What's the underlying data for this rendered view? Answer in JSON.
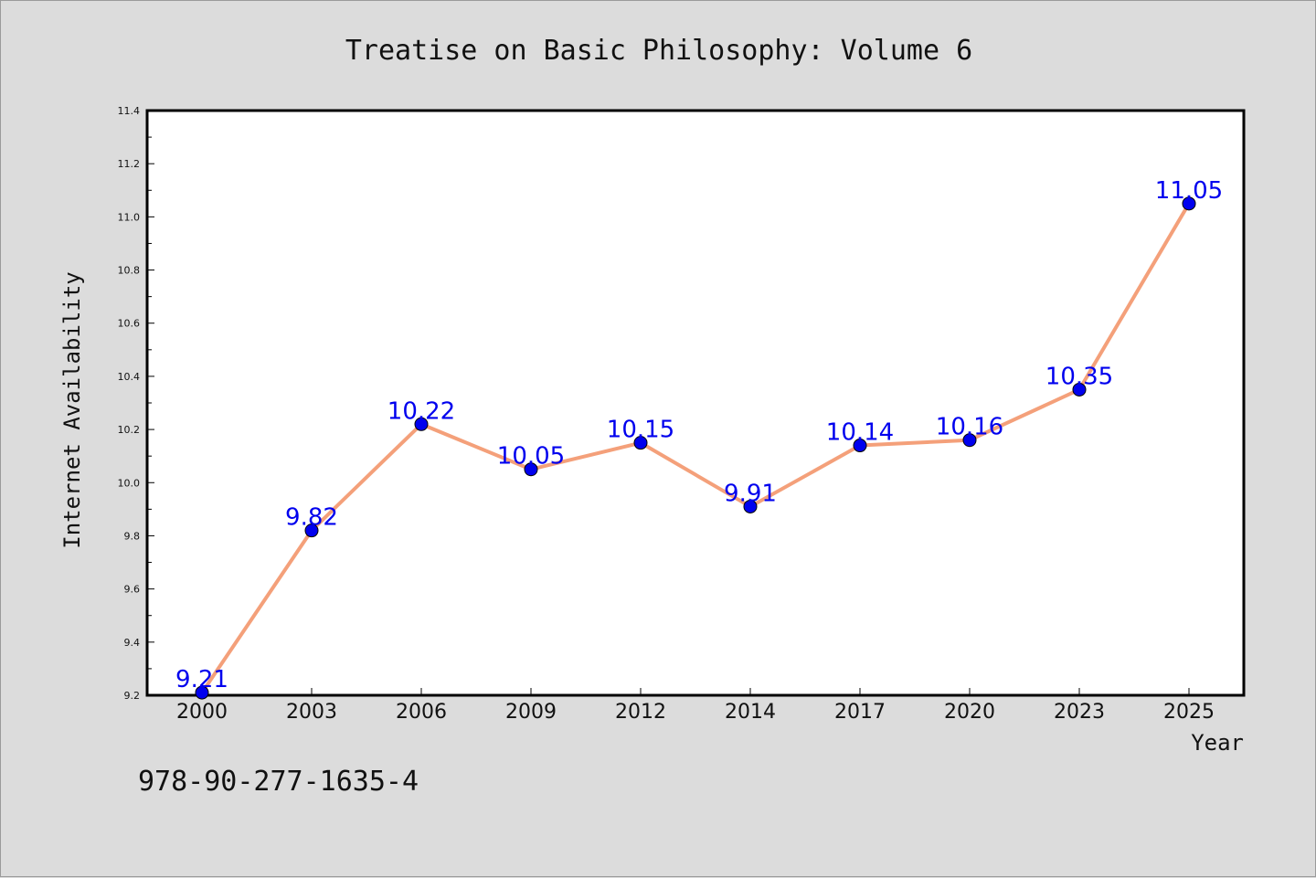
{
  "chart_data": {
    "type": "line",
    "title": "Treatise on Basic Philosophy: Volume 6",
    "xlabel": "Year",
    "ylabel": "Internet Availability",
    "categories": [
      "2000",
      "2003",
      "2006",
      "2009",
      "2012",
      "2014",
      "2017",
      "2020",
      "2023",
      "2025"
    ],
    "series": [
      {
        "values": [
          9.21,
          9.82,
          10.22,
          10.05,
          10.15,
          9.91,
          10.14,
          10.16,
          10.35,
          11.05
        ],
        "data_labels": [
          "9.21",
          "9.82",
          "10.22",
          "10.05",
          "10.15",
          "9.91",
          "10.14",
          "10.16",
          "10.35",
          "11.05"
        ],
        "line_color": "#f4a07a",
        "marker_color": "#0000ee"
      }
    ],
    "ylim": [
      9.2,
      11.4
    ],
    "yticks": [
      9.2,
      9.4,
      9.6,
      9.8,
      10.0,
      10.2,
      10.4,
      10.6,
      10.8,
      11.0,
      11.2,
      11.4
    ],
    "ytick_labels": [
      "9.2",
      "9.4",
      "9.6",
      "9.8",
      "10.0",
      "10.2",
      "10.4",
      "10.6",
      "10.8",
      "11.0",
      "11.2",
      "11.4"
    ],
    "grid": false,
    "legend": "none",
    "label_color": "#0000ee"
  },
  "annotation": "978-90-277-1635-4",
  "colors": {
    "background": "#dcdcdc",
    "plot_background": "#ffffff",
    "axis": "#000000"
  }
}
